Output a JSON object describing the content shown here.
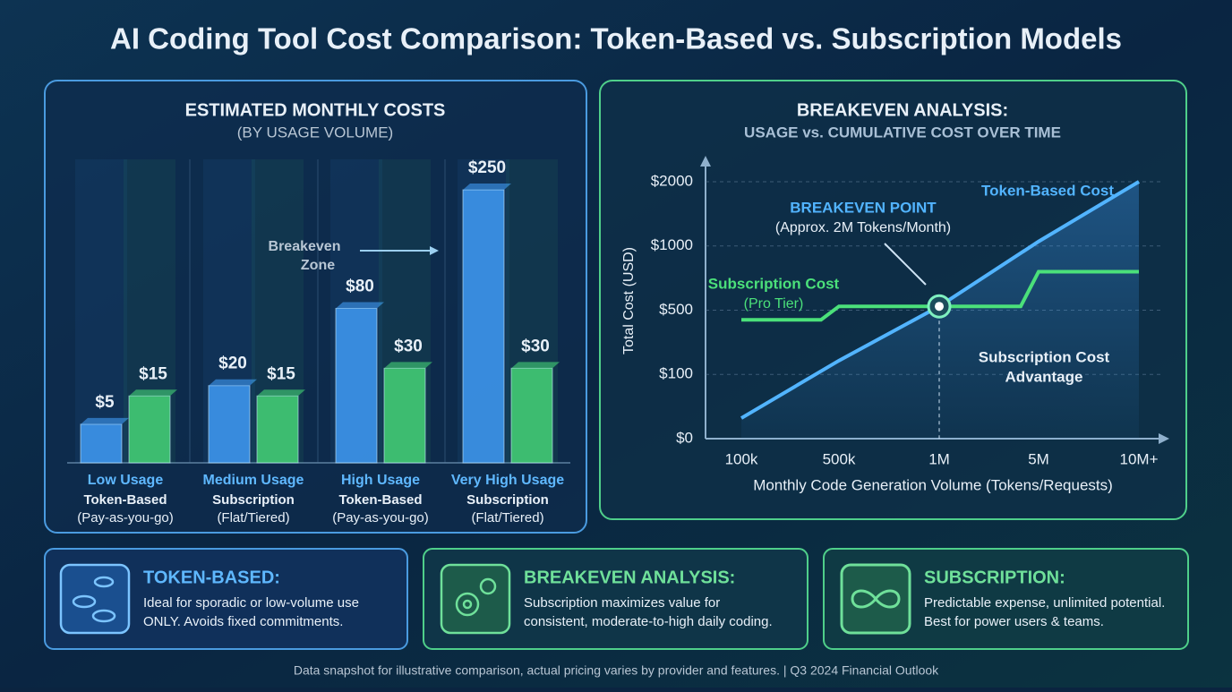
{
  "title": "AI Coding Tool Cost Comparison: Token-Based vs. Subscription Models",
  "chart_data": [
    {
      "type": "bar",
      "title": "ESTIMATED MONTHLY COSTS",
      "subtitle": "(BY USAGE VOLUME)",
      "categories": [
        "Low Usage",
        "Medium Usage",
        "High Usage",
        "Very High Usage"
      ],
      "category_notes": [
        [
          "Token-Based",
          "(Pay-as-you-go)"
        ],
        [
          "Subscription",
          "(Flat/Tiered)"
        ],
        [
          "Token-Based",
          "(Pay-as-you-go)"
        ],
        [
          "Subscription",
          "(Flat/Tiered)"
        ]
      ],
      "series": [
        {
          "color": "#3f9bf5",
          "values": [
            5,
            20,
            80,
            250
          ],
          "value_labels": [
            "$5",
            "$20",
            "$80",
            "$250"
          ]
        },
        {
          "color": "#45d477",
          "values": [
            15,
            15,
            30,
            30
          ],
          "value_labels": [
            "$15",
            "$15",
            "$30",
            "$30"
          ]
        }
      ],
      "scale": "sqrt",
      "ylim": [
        0,
        250
      ],
      "annotations": [
        "Breakeven",
        "Zone"
      ]
    },
    {
      "type": "line",
      "title": "BREAKEVEN ANALYSIS:",
      "subtitle": "USAGE vs. CUMULATIVE COST OVER TIME",
      "categories": [
        "100k",
        "500k",
        "1M",
        "5M",
        "10M+"
      ],
      "xlabel": "Monthly Code Generation Volume (Tokens/Requests)",
      "ylabel": "Total Cost (USD)",
      "ylim": [
        0,
        2000
      ],
      "yticks": [
        {
          "value": 0,
          "label": "$0"
        },
        {
          "value": 100,
          "label": "$100"
        },
        {
          "value": 500,
          "label": "$500"
        },
        {
          "value": 1000,
          "label": "$1000"
        },
        {
          "value": 2000,
          "label": "$2000"
        }
      ],
      "grid": true,
      "series": [
        {
          "name": "Token-Based Cost",
          "color": "#52b4ff",
          "values": [
            32,
            186,
            530,
            1070,
            2000
          ]
        },
        {
          "name": "Subscription Cost",
          "color": "#4be07a",
          "step": true,
          "values": [
            440,
            530,
            530,
            800,
            800
          ]
        }
      ],
      "annotations": [
        "BREAKEVEN POINT",
        "(Approx. 2M Tokens/Month)",
        "(Pro Tier)",
        "Subscription Cost",
        "Advantage"
      ]
    }
  ],
  "cards": [
    {
      "title": "TOKEN-BASED:",
      "lines": [
        "Ideal for sporadic or low-volume use",
        "ONLY. Avoids fixed commitments."
      ]
    },
    {
      "title": "BREAKEVEN ANALYSIS:",
      "lines": [
        "Subscription maximizes value for",
        "consistent, moderate-to-high daily coding."
      ]
    },
    {
      "title": "SUBSCRIPTION:",
      "lines": [
        "Predictable expense, unlimited potential.",
        "Best for power users & teams."
      ]
    }
  ],
  "footer": "Data snapshot for illustrative comparison, actual pricing varies by provider and features. |  Q3 2024 Financial Outlook"
}
